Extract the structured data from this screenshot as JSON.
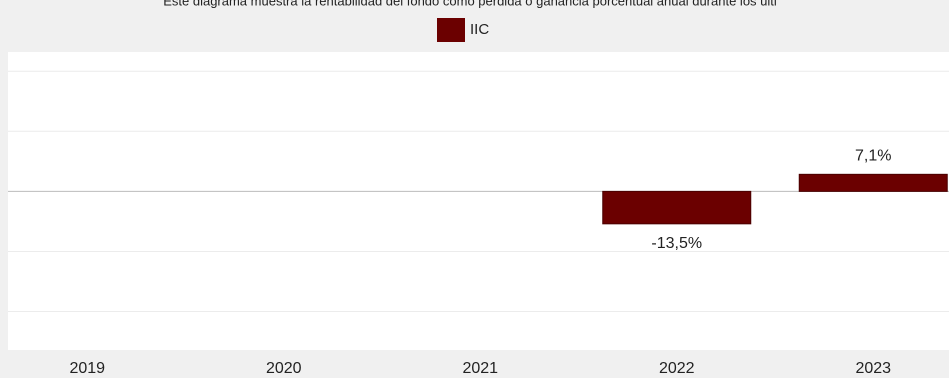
{
  "chart_data": {
    "type": "bar",
    "title": "Este diagrama muestra la rentabilidad del fondo como pérdida o ganancia porcentual anual durante los últi",
    "categories": [
      "2019",
      "2020",
      "2021",
      "2022",
      "2023"
    ],
    "series": [
      {
        "name": "IIC",
        "color": "#6b0000",
        "values": [
          null,
          null,
          null,
          -13.5,
          7.1
        ],
        "value_labels": [
          null,
          null,
          null,
          "-13,5%",
          "7,1%"
        ]
      }
    ],
    "ylim": [
      -66,
      58
    ],
    "yticks": [
      -50,
      -25,
      0,
      25,
      50
    ],
    "grid": true
  }
}
